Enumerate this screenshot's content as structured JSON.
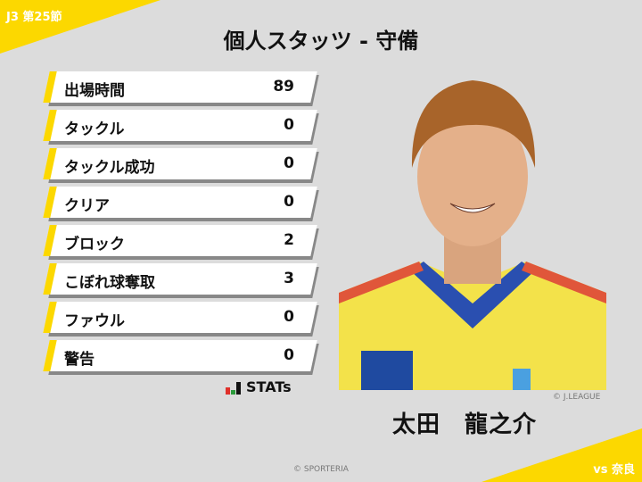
{
  "header": {
    "round": "J3 第25節",
    "title": "個人スタッツ - 守備",
    "opponent": "vs 奈良"
  },
  "stats": [
    {
      "label": "出場時間",
      "value": "89"
    },
    {
      "label": "タックル",
      "value": "0"
    },
    {
      "label": "タックル成功",
      "value": "0"
    },
    {
      "label": "クリア",
      "value": "0"
    },
    {
      "label": "ブロック",
      "value": "2"
    },
    {
      "label": "こぼれ球奪取",
      "value": "3"
    },
    {
      "label": "ファウル",
      "value": "0"
    },
    {
      "label": "警告",
      "value": "0"
    }
  ],
  "brand": {
    "logo_text": "STATs",
    "accent": "#fcd800"
  },
  "player": {
    "name": "太田　龍之介",
    "photo_credit": "© J.LEAGUE"
  },
  "footer": {
    "copyright": "© SPORTERIA"
  }
}
